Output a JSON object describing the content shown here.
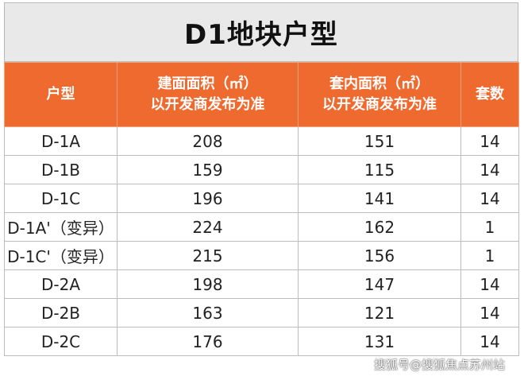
{
  "title": "D1地块户型",
  "headers": {
    "unit_type": "户型",
    "built_area_line1": "建面面积（㎡）",
    "built_area_line2": "以开发商发布为准",
    "inner_area_line1": "套内面积（㎡）",
    "inner_area_line2": "以开发商发布为准",
    "count": "套数"
  },
  "rows": [
    {
      "type": "D-1A",
      "built": "208",
      "inner": "151",
      "count": "14"
    },
    {
      "type": "D-1B",
      "built": "159",
      "inner": "115",
      "count": "14"
    },
    {
      "type": "D-1C",
      "built": "196",
      "inner": "141",
      "count": "14"
    },
    {
      "type": "D-1A'（变异）",
      "built": "224",
      "inner": "162",
      "count": "1"
    },
    {
      "type": "D-1C'（变异）",
      "built": "215",
      "inner": "156",
      "count": "1"
    },
    {
      "type": "D-2A",
      "built": "198",
      "inner": "147",
      "count": "14"
    },
    {
      "type": "D-2B",
      "built": "163",
      "inner": "121",
      "count": "14"
    },
    {
      "type": "D-2C",
      "built": "176",
      "inner": "131",
      "count": "14"
    }
  ],
  "watermark": "搜狐号@搜狐焦点苏州站",
  "colors": {
    "header_bg": "#ef6a2f",
    "title_bg": "#e9e9e9"
  }
}
